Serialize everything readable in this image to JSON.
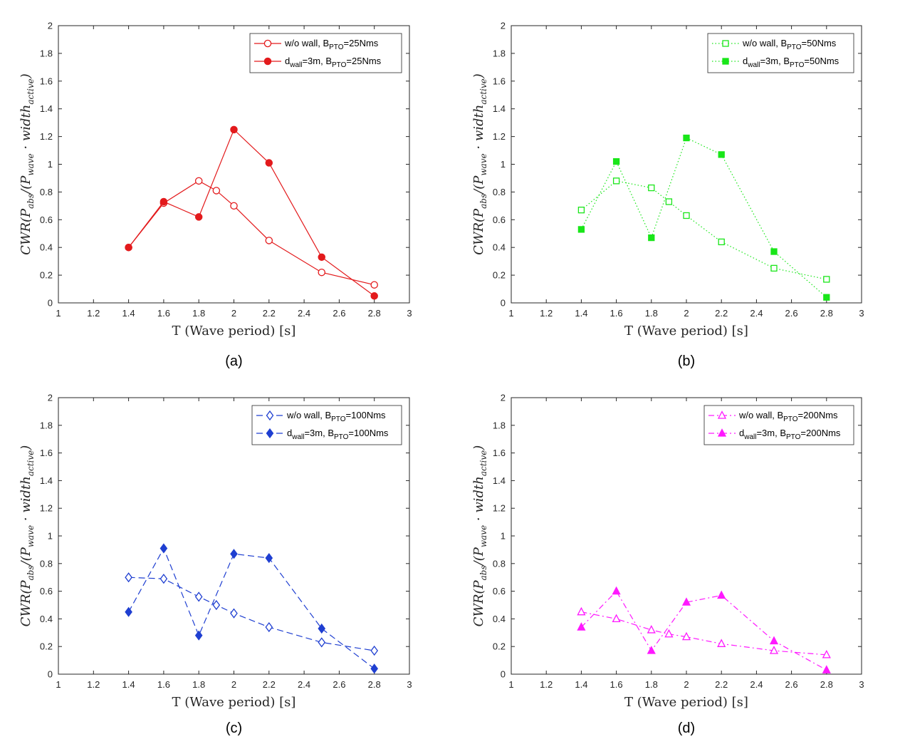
{
  "chart_data": [
    {
      "type": "line",
      "panel": "(a)",
      "caption": "(a)",
      "color": "#e31a1c",
      "dash": "solid",
      "marker": "circle",
      "xlabel": "T (Wave period) [s]",
      "ylabel_main": "CWR(P",
      "ylabel_sub1": "abs",
      "ylabel_mid": "/(P",
      "ylabel_sub2": "wave",
      "ylabel_mid2": " · width",
      "ylabel_sub3": "active",
      "ylabel_end": ")",
      "xlim": [
        1,
        3
      ],
      "ylim": [
        0,
        2
      ],
      "xticks": [
        "1",
        "1.2",
        "1.4",
        "1.6",
        "1.8",
        "2",
        "2.2",
        "2.4",
        "2.6",
        "2.8",
        "3"
      ],
      "yticks": [
        "0",
        "0.2",
        "0.4",
        "0.6",
        "0.8",
        "1",
        "1.2",
        "1.4",
        "1.6",
        "1.8",
        "2"
      ],
      "legend_position": "top-right",
      "series": [
        {
          "name_parts": [
            "w/o wall, B",
            "PTO",
            "=25Nms"
          ],
          "name": "w/o wall, BPTO=25Nms",
          "filled": false,
          "x": [
            1.4,
            1.6,
            1.8,
            1.9,
            2.0,
            2.2,
            2.5,
            2.8
          ],
          "y": [
            0.4,
            0.72,
            0.88,
            0.81,
            0.7,
            0.45,
            0.22,
            0.13
          ]
        },
        {
          "name_parts": [
            "d",
            "wall",
            "=3m, B",
            "PTO",
            "=25Nms"
          ],
          "name": "dwall=3m, BPTO=25Nms",
          "filled": true,
          "x": [
            1.4,
            1.6,
            1.8,
            2.0,
            2.2,
            2.5,
            2.8
          ],
          "y": [
            0.4,
            0.73,
            0.62,
            1.25,
            1.01,
            0.33,
            0.05
          ]
        }
      ]
    },
    {
      "type": "line",
      "panel": "(b)",
      "caption": "(b)",
      "color": "#19e619",
      "dash": "dotted",
      "marker": "square",
      "xlabel": "T (Wave period) [s]",
      "ylabel_main": "CWR(P",
      "ylabel_sub1": "abs",
      "ylabel_mid": "/(P",
      "ylabel_sub2": "wave",
      "ylabel_mid2": " · width",
      "ylabel_sub3": "active",
      "ylabel_end": ")",
      "xlim": [
        1,
        3
      ],
      "ylim": [
        0,
        2
      ],
      "xticks": [
        "1",
        "1.2",
        "1.4",
        "1.6",
        "1.8",
        "2",
        "2.2",
        "2.4",
        "2.6",
        "2.8",
        "3"
      ],
      "yticks": [
        "0",
        "0.2",
        "0.4",
        "0.6",
        "0.8",
        "1",
        "1.2",
        "1.4",
        "1.6",
        "1.8",
        "2"
      ],
      "legend_position": "top-right",
      "series": [
        {
          "name_parts": [
            "w/o wall, B",
            "PTO",
            "=50Nms"
          ],
          "name": "w/o wall, BPTO=50Nms",
          "filled": false,
          "x": [
            1.4,
            1.6,
            1.8,
            1.9,
            2.0,
            2.2,
            2.5,
            2.8
          ],
          "y": [
            0.67,
            0.88,
            0.83,
            0.73,
            0.63,
            0.44,
            0.25,
            0.17
          ]
        },
        {
          "name_parts": [
            "d",
            "wall",
            "=3m, B",
            "PTO",
            "=50Nms"
          ],
          "name": "dwall=3m, BPTO=50Nms",
          "filled": true,
          "x": [
            1.4,
            1.6,
            1.8,
            2.0,
            2.2,
            2.5,
            2.8
          ],
          "y": [
            0.53,
            1.02,
            0.47,
            1.19,
            1.07,
            0.37,
            0.04
          ]
        }
      ]
    },
    {
      "type": "line",
      "panel": "(c)",
      "caption": "(c)",
      "color": "#1f3fd1",
      "dash": "dashed",
      "marker": "diamond",
      "xlabel": "T (Wave period) [s]",
      "ylabel_main": "CWR(P",
      "ylabel_sub1": "abs",
      "ylabel_mid": "/(P",
      "ylabel_sub2": "wave",
      "ylabel_mid2": " · width",
      "ylabel_sub3": "active",
      "ylabel_end": ")",
      "xlim": [
        1,
        3
      ],
      "ylim": [
        0,
        2
      ],
      "xticks": [
        "1",
        "1.2",
        "1.4",
        "1.6",
        "1.8",
        "2",
        "2.2",
        "2.4",
        "2.6",
        "2.8",
        "3"
      ],
      "yticks": [
        "0",
        "0.2",
        "0.4",
        "0.6",
        "0.8",
        "1",
        "1.2",
        "1.4",
        "1.6",
        "1.8",
        "2"
      ],
      "legend_position": "top-right",
      "series": [
        {
          "name_parts": [
            "w/o wall, B",
            "PTO",
            "=100Nms"
          ],
          "name": "w/o wall, BPTO=100Nms",
          "filled": false,
          "x": [
            1.4,
            1.6,
            1.8,
            1.9,
            2.0,
            2.2,
            2.5,
            2.8
          ],
          "y": [
            0.7,
            0.69,
            0.56,
            0.5,
            0.44,
            0.34,
            0.23,
            0.17
          ]
        },
        {
          "name_parts": [
            "d",
            "wall",
            "=3m, B",
            "PTO",
            "=100Nms"
          ],
          "name": "dwall=3m, BPTO=100Nms",
          "filled": true,
          "x": [
            1.4,
            1.6,
            1.8,
            2.0,
            2.2,
            2.5,
            2.8
          ],
          "y": [
            0.45,
            0.91,
            0.28,
            0.87,
            0.84,
            0.33,
            0.04
          ]
        }
      ]
    },
    {
      "type": "line",
      "panel": "(d)",
      "caption": "(d)",
      "color": "#ff19ff",
      "dash": "dashdot",
      "marker": "triangle",
      "xlabel": "T (Wave period) [s]",
      "ylabel_main": "CWR(P",
      "ylabel_sub1": "abs",
      "ylabel_mid": "/(P",
      "ylabel_sub2": "wave",
      "ylabel_mid2": " · width",
      "ylabel_sub3": "active",
      "ylabel_end": ")",
      "xlim": [
        1,
        3
      ],
      "ylim": [
        0,
        2
      ],
      "xticks": [
        "1",
        "1.2",
        "1.4",
        "1.6",
        "1.8",
        "2",
        "2.2",
        "2.4",
        "2.6",
        "2.8",
        "3"
      ],
      "yticks": [
        "0",
        "0.2",
        "0.4",
        "0.6",
        "0.8",
        "1",
        "1.2",
        "1.4",
        "1.6",
        "1.8",
        "2"
      ],
      "legend_position": "top-right",
      "series": [
        {
          "name_parts": [
            "w/o wall, B",
            "PTO",
            "=200Nms"
          ],
          "name": "w/o wall, BPTO=200Nms",
          "filled": false,
          "x": [
            1.4,
            1.6,
            1.8,
            1.9,
            2.0,
            2.2,
            2.5,
            2.8
          ],
          "y": [
            0.45,
            0.4,
            0.32,
            0.29,
            0.27,
            0.22,
            0.17,
            0.14
          ]
        },
        {
          "name_parts": [
            "d",
            "wall",
            "=3m, B",
            "PTO",
            "=200Nms"
          ],
          "name": "dwall=3m, BPTO=200Nms",
          "filled": true,
          "x": [
            1.4,
            1.6,
            1.8,
            2.0,
            2.2,
            2.5,
            2.8
          ],
          "y": [
            0.34,
            0.6,
            0.17,
            0.52,
            0.57,
            0.24,
            0.03
          ]
        }
      ]
    }
  ]
}
